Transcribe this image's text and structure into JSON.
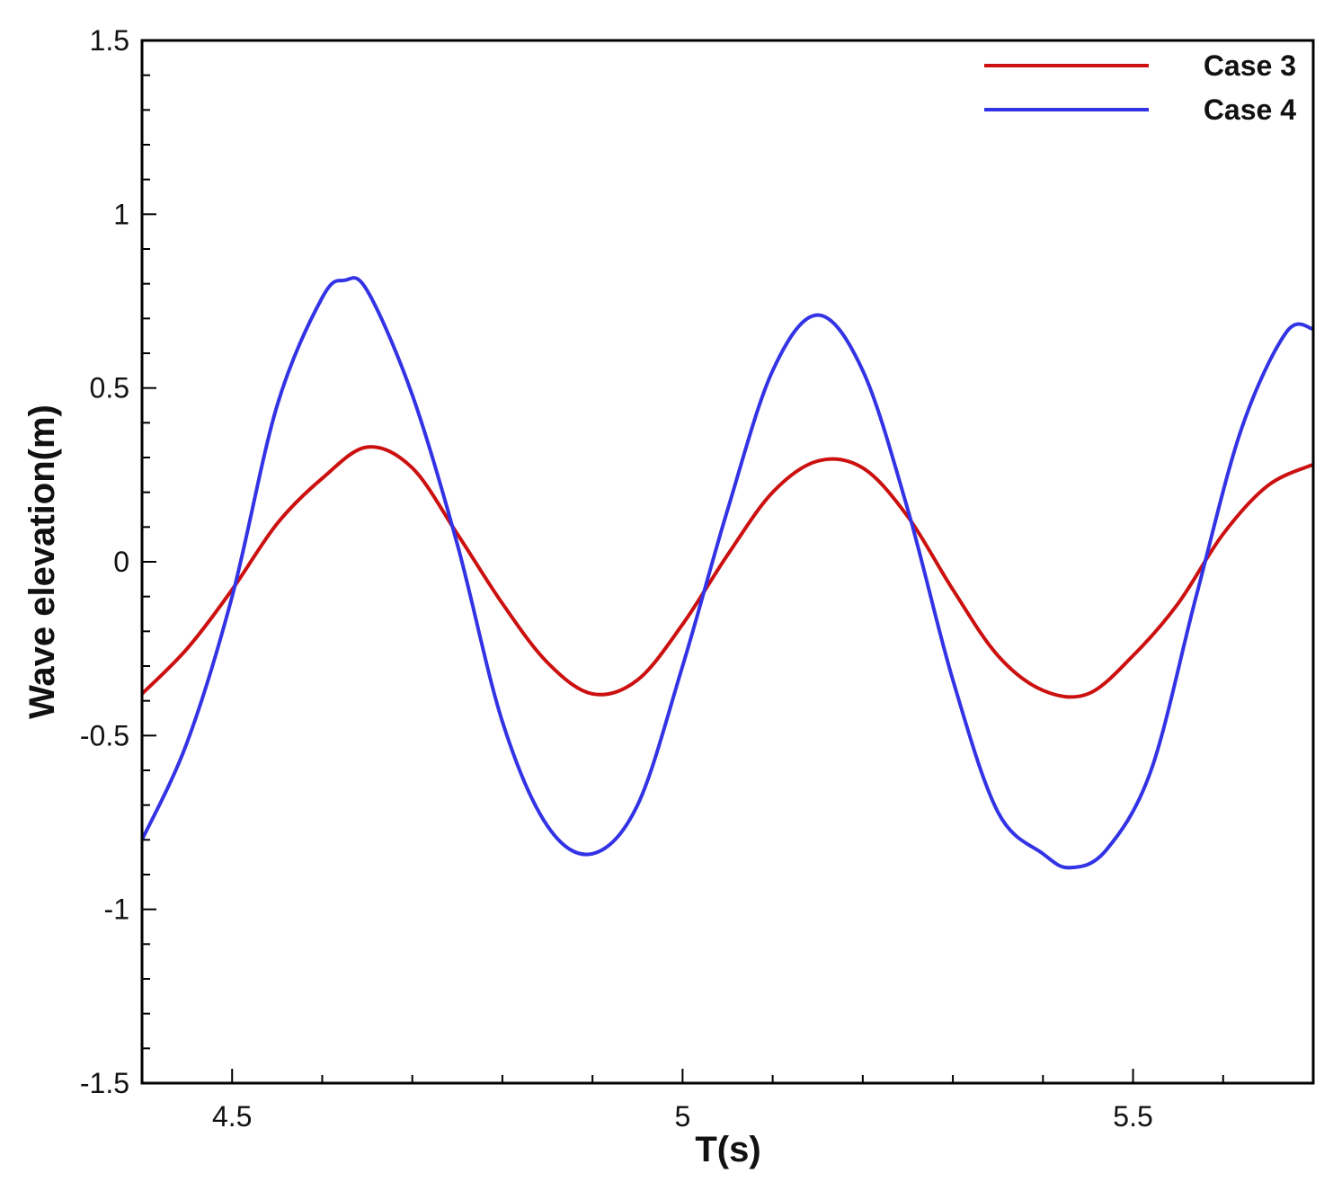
{
  "chart_data": {
    "type": "line",
    "title": "",
    "xlabel": "T(s)",
    "ylabel": "Wave elevation(m)",
    "xlim": [
      4.4,
      5.7
    ],
    "ylim": [
      -1.5,
      1.5
    ],
    "xticks": [
      4.5,
      5,
      5.5
    ],
    "xtick_labels": [
      "4.5",
      "5",
      "5.5"
    ],
    "x_minor_step": 0.1,
    "yticks": [
      -1.5,
      -1,
      -0.5,
      0,
      0.5,
      1,
      1.5
    ],
    "ytick_labels": [
      "-1.5",
      "-1",
      "-0.5",
      "0",
      "0.5",
      "1",
      "1.5"
    ],
    "y_minor_step": 0.1,
    "grid": false,
    "legend_position": "top-right",
    "series": [
      {
        "name": "Case 3",
        "color": "#cc1010",
        "points": [
          [
            4.4,
            -0.38
          ],
          [
            4.45,
            -0.25
          ],
          [
            4.5,
            -0.08
          ],
          [
            4.55,
            0.11
          ],
          [
            4.6,
            0.24
          ],
          [
            4.65,
            0.33
          ],
          [
            4.7,
            0.27
          ],
          [
            4.75,
            0.08
          ],
          [
            4.8,
            -0.12
          ],
          [
            4.85,
            -0.29
          ],
          [
            4.9,
            -0.38
          ],
          [
            4.95,
            -0.34
          ],
          [
            5.0,
            -0.18
          ],
          [
            5.05,
            0.02
          ],
          [
            5.1,
            0.2
          ],
          [
            5.15,
            0.29
          ],
          [
            5.2,
            0.27
          ],
          [
            5.25,
            0.13
          ],
          [
            5.3,
            -0.08
          ],
          [
            5.35,
            -0.27
          ],
          [
            5.4,
            -0.37
          ],
          [
            5.45,
            -0.38
          ],
          [
            5.5,
            -0.27
          ],
          [
            5.55,
            -0.12
          ],
          [
            5.6,
            0.08
          ],
          [
            5.65,
            0.22
          ],
          [
            5.7,
            0.28
          ]
        ]
      },
      {
        "name": "Case 4",
        "color": "#3333e6",
        "points": [
          [
            4.4,
            -0.8
          ],
          [
            4.45,
            -0.52
          ],
          [
            4.5,
            -0.1
          ],
          [
            4.55,
            0.45
          ],
          [
            4.6,
            0.76
          ],
          [
            4.625,
            0.81
          ],
          [
            4.65,
            0.78
          ],
          [
            4.7,
            0.48
          ],
          [
            4.75,
            0.05
          ],
          [
            4.8,
            -0.46
          ],
          [
            4.85,
            -0.76
          ],
          [
            4.9,
            -0.84
          ],
          [
            4.95,
            -0.7
          ],
          [
            5.0,
            -0.3
          ],
          [
            5.05,
            0.15
          ],
          [
            5.1,
            0.55
          ],
          [
            5.15,
            0.71
          ],
          [
            5.2,
            0.55
          ],
          [
            5.25,
            0.15
          ],
          [
            5.3,
            -0.34
          ],
          [
            5.35,
            -0.72
          ],
          [
            5.4,
            -0.84
          ],
          [
            5.43,
            -0.88
          ],
          [
            5.47,
            -0.83
          ],
          [
            5.52,
            -0.6
          ],
          [
            5.57,
            -0.1
          ],
          [
            5.62,
            0.38
          ],
          [
            5.67,
            0.66
          ],
          [
            5.7,
            0.67
          ]
        ]
      }
    ]
  }
}
